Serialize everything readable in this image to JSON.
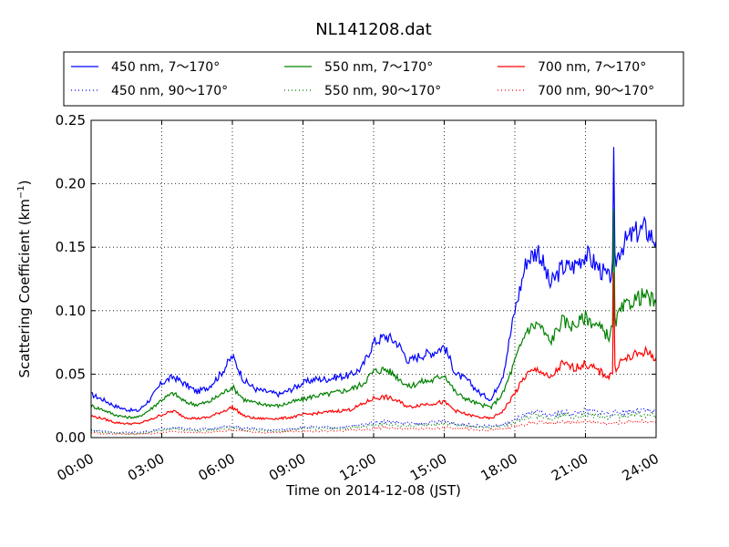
{
  "chart_data": {
    "type": "line",
    "title": "NL141208.dat",
    "xlabel": "Time on 2014-12-08 (JST)",
    "ylabel_main": "Scattering Coefficient (km",
    "ylabel_sup": "−1",
    "ylabel_tail": ")",
    "xlim": [
      "2014-12-08 00:00",
      "2014-12-09 00:00"
    ],
    "ylim": [
      0.0,
      0.25
    ],
    "x_tick_labels": [
      "00:00",
      "03:00",
      "06:00",
      "09:00",
      "12:00",
      "15:00",
      "18:00",
      "21:00",
      "24:00"
    ],
    "y_ticks": [
      0.0,
      0.05,
      0.1,
      0.15,
      0.2,
      0.25
    ],
    "y_tick_labels": [
      "0.00",
      "0.05",
      "0.10",
      "0.15",
      "0.20",
      "0.25"
    ],
    "grid": true,
    "legend_placement": "top",
    "x": [
      "00:00",
      "00:30",
      "01:00",
      "01:30",
      "02:00",
      "02:30",
      "03:00",
      "03:30",
      "04:00",
      "04:30",
      "05:00",
      "05:30",
      "06:00",
      "06:30",
      "07:00",
      "07:30",
      "08:00",
      "08:30",
      "09:00",
      "09:30",
      "10:00",
      "10:30",
      "11:00",
      "11:30",
      "12:00",
      "12:30",
      "13:00",
      "13:30",
      "14:00",
      "14:30",
      "15:00",
      "15:30",
      "16:00",
      "16:30",
      "17:00",
      "17:30",
      "18:00",
      "18:30",
      "19:00",
      "19:30",
      "20:00",
      "20:30",
      "21:00",
      "21:30",
      "22:00",
      "22:30",
      "23:00",
      "23:30",
      "24:00"
    ],
    "series": [
      {
        "name": "450 nm, 7～170°",
        "color": "#0000ff",
        "style": "solid",
        "values": [
          0.034,
          0.03,
          0.025,
          0.022,
          0.021,
          0.03,
          0.043,
          0.048,
          0.042,
          0.036,
          0.04,
          0.05,
          0.064,
          0.045,
          0.038,
          0.036,
          0.034,
          0.038,
          0.043,
          0.046,
          0.046,
          0.048,
          0.049,
          0.055,
          0.075,
          0.08,
          0.075,
          0.06,
          0.065,
          0.067,
          0.072,
          0.05,
          0.045,
          0.035,
          0.03,
          0.05,
          0.1,
          0.14,
          0.148,
          0.12,
          0.134,
          0.135,
          0.145,
          0.135,
          0.125,
          0.15,
          0.16,
          0.165,
          0.155
        ]
      },
      {
        "name": "550 nm, 7～170°",
        "color": "#008000",
        "style": "solid",
        "values": [
          0.025,
          0.022,
          0.018,
          0.016,
          0.016,
          0.022,
          0.03,
          0.035,
          0.028,
          0.026,
          0.028,
          0.034,
          0.04,
          0.03,
          0.027,
          0.026,
          0.025,
          0.028,
          0.03,
          0.033,
          0.034,
          0.036,
          0.038,
          0.042,
          0.052,
          0.054,
          0.048,
          0.04,
          0.044,
          0.045,
          0.05,
          0.035,
          0.03,
          0.026,
          0.024,
          0.035,
          0.06,
          0.085,
          0.09,
          0.075,
          0.092,
          0.088,
          0.095,
          0.088,
          0.08,
          0.1,
          0.108,
          0.112,
          0.106
        ]
      },
      {
        "name": "700 nm, 7～170°",
        "color": "#ff0000",
        "style": "solid",
        "values": [
          0.017,
          0.015,
          0.012,
          0.011,
          0.011,
          0.014,
          0.018,
          0.021,
          0.016,
          0.015,
          0.016,
          0.02,
          0.024,
          0.017,
          0.015,
          0.015,
          0.015,
          0.016,
          0.018,
          0.019,
          0.02,
          0.021,
          0.022,
          0.026,
          0.031,
          0.032,
          0.029,
          0.024,
          0.026,
          0.027,
          0.028,
          0.021,
          0.018,
          0.016,
          0.015,
          0.021,
          0.035,
          0.05,
          0.054,
          0.046,
          0.058,
          0.055,
          0.058,
          0.053,
          0.048,
          0.06,
          0.064,
          0.068,
          0.063
        ]
      },
      {
        "name": "450 nm, 90～170°",
        "color": "#0000ff",
        "style": "dotted",
        "values": [
          0.006,
          0.005,
          0.004,
          0.004,
          0.004,
          0.005,
          0.007,
          0.008,
          0.007,
          0.006,
          0.007,
          0.008,
          0.009,
          0.007,
          0.007,
          0.006,
          0.006,
          0.007,
          0.008,
          0.008,
          0.008,
          0.008,
          0.009,
          0.01,
          0.012,
          0.013,
          0.012,
          0.011,
          0.011,
          0.012,
          0.013,
          0.011,
          0.01,
          0.009,
          0.009,
          0.01,
          0.014,
          0.018,
          0.02,
          0.017,
          0.02,
          0.019,
          0.021,
          0.02,
          0.019,
          0.02,
          0.021,
          0.021,
          0.02
        ]
      },
      {
        "name": "550 nm, 90～170°",
        "color": "#008000",
        "style": "dotted",
        "values": [
          0.005,
          0.004,
          0.004,
          0.003,
          0.003,
          0.004,
          0.006,
          0.007,
          0.006,
          0.005,
          0.006,
          0.007,
          0.008,
          0.006,
          0.006,
          0.005,
          0.005,
          0.006,
          0.007,
          0.007,
          0.007,
          0.007,
          0.008,
          0.009,
          0.01,
          0.011,
          0.01,
          0.009,
          0.01,
          0.01,
          0.011,
          0.01,
          0.009,
          0.008,
          0.008,
          0.009,
          0.012,
          0.016,
          0.018,
          0.015,
          0.018,
          0.017,
          0.018,
          0.017,
          0.016,
          0.017,
          0.018,
          0.018,
          0.017
        ]
      },
      {
        "name": "700 nm, 90～170°",
        "color": "#ff0000",
        "style": "dotted",
        "values": [
          0.004,
          0.003,
          0.003,
          0.003,
          0.003,
          0.003,
          0.004,
          0.005,
          0.004,
          0.004,
          0.004,
          0.005,
          0.006,
          0.005,
          0.004,
          0.004,
          0.004,
          0.005,
          0.005,
          0.005,
          0.005,
          0.005,
          0.006,
          0.006,
          0.007,
          0.008,
          0.007,
          0.007,
          0.007,
          0.007,
          0.008,
          0.007,
          0.007,
          0.006,
          0.006,
          0.007,
          0.009,
          0.011,
          0.012,
          0.011,
          0.012,
          0.012,
          0.013,
          0.012,
          0.011,
          0.012,
          0.013,
          0.013,
          0.012
        ]
      }
    ],
    "spikes": {
      "x": "22:12",
      "values": [
        0.229,
        0.18,
        0.13
      ]
    }
  }
}
